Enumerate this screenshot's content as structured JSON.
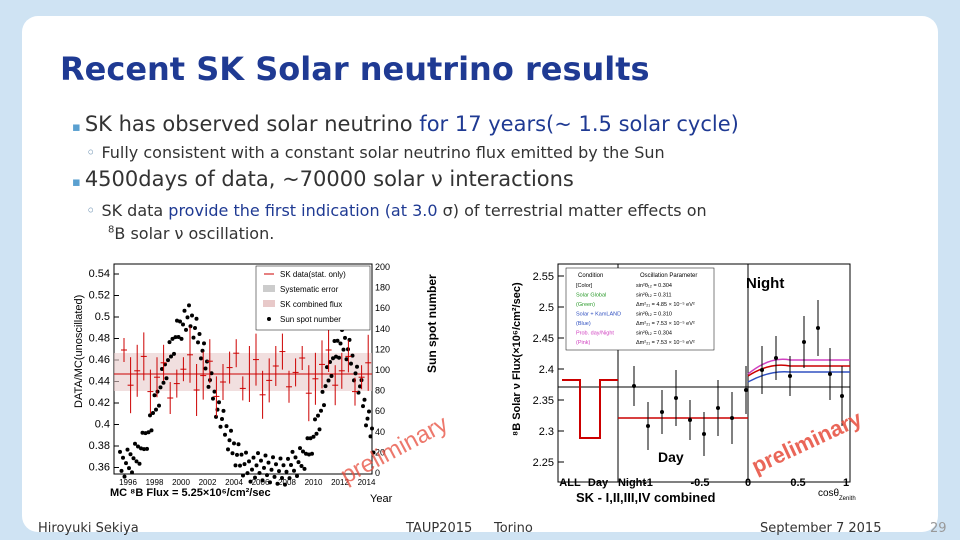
{
  "slide": {
    "title": "Recent SK Solar neutrino results",
    "bullet1_a": "SK has observed solar neutrino ",
    "bullet1_b": "for 17 years(~ 1.5 solar cycle)",
    "sub1": "Fully consistent with a constant solar neutrino flux emitted by the Sun",
    "bullet2_a": "4500days of data, ~70000 solar ",
    "bullet2_nu": "ν",
    "bullet2_b": " interactions",
    "sub2_a": "SK data ",
    "sub2_b": "provide the first indication (at 3.0 ",
    "sub2_sigma": "σ",
    "sub2_c": ") of terrestrial matter effects on",
    "sub2_sup": "8",
    "sub2_d": "B solar ",
    "sub2_nu": "ν",
    "sub2_e": " oscillation."
  },
  "left_plot": {
    "ylabel": "DATA/MC(unoscillated)",
    "yticks": [
      "0.54",
      "0.52",
      "0.5",
      "0.48",
      "0.46",
      "0.44",
      "0.42",
      "0.4",
      "0.38",
      "0.36"
    ],
    "xticks": [
      "1996",
      "1998",
      "2000",
      "2002",
      "2004",
      "2006",
      "2008",
      "2010",
      "2012",
      "2014"
    ],
    "xlabel": "Year",
    "caption": "MC ⁸B Flux = 5.25×10⁶/cm²/sec",
    "right_axis_label": "Sun spot number",
    "right_ticks": [
      "200",
      "180",
      "160",
      "140",
      "120",
      "100",
      "80",
      "60",
      "40",
      "20",
      "0"
    ],
    "legend": [
      "SK data(stat. only)",
      "Systematic error",
      "SK combined flux",
      "Sun spot number"
    ],
    "watermark": "preliminary"
  },
  "right_plot": {
    "ylabel": "⁸B Solar ν Flux(×10⁶/cm²/sec)",
    "yticks": [
      "2.55",
      "2.5",
      "2.45",
      "2.4",
      "2.35",
      "2.3",
      "2.25"
    ],
    "xticks": [
      "ALL",
      "Day",
      "Night",
      "-1",
      "-0.5",
      "0",
      "0.5",
      "1"
    ],
    "xlabel": "cosθ",
    "xlabel_sub": "Zenith",
    "caption": "SK - I,II,III,IV combined",
    "night": "Night",
    "day": "Day",
    "watermark": "preliminary",
    "inset_headers": [
      "Condition",
      "Oscillation Parameter"
    ],
    "inset_rows": [
      [
        "[Color]",
        "sin²θ₁₂ = 0.304"
      ],
      [
        "Solar Global",
        "sin²θ₁₂ = 0.311"
      ],
      [
        "(Green)",
        "Δm²₂₁ = 4.85 × 10⁻⁵ eV²"
      ],
      [
        "Solar + KamLAND",
        "sin²θ₁₂ = 0.310"
      ],
      [
        "(Blue)",
        "Δm²₂₁ = 7.53 × 10⁻⁵ eV²"
      ],
      [
        "Prob. day/Night",
        "sin²θ₁₂ = 0.304"
      ],
      [
        "(Pink)",
        "Δm²₂₁ = 7.53 × 10⁻⁵ eV²"
      ]
    ]
  },
  "footer": {
    "author": "Hiroyuki Sekiya",
    "conf": "TAUP2015",
    "place": "Torino",
    "date": "September 7 2015",
    "page": "29"
  }
}
